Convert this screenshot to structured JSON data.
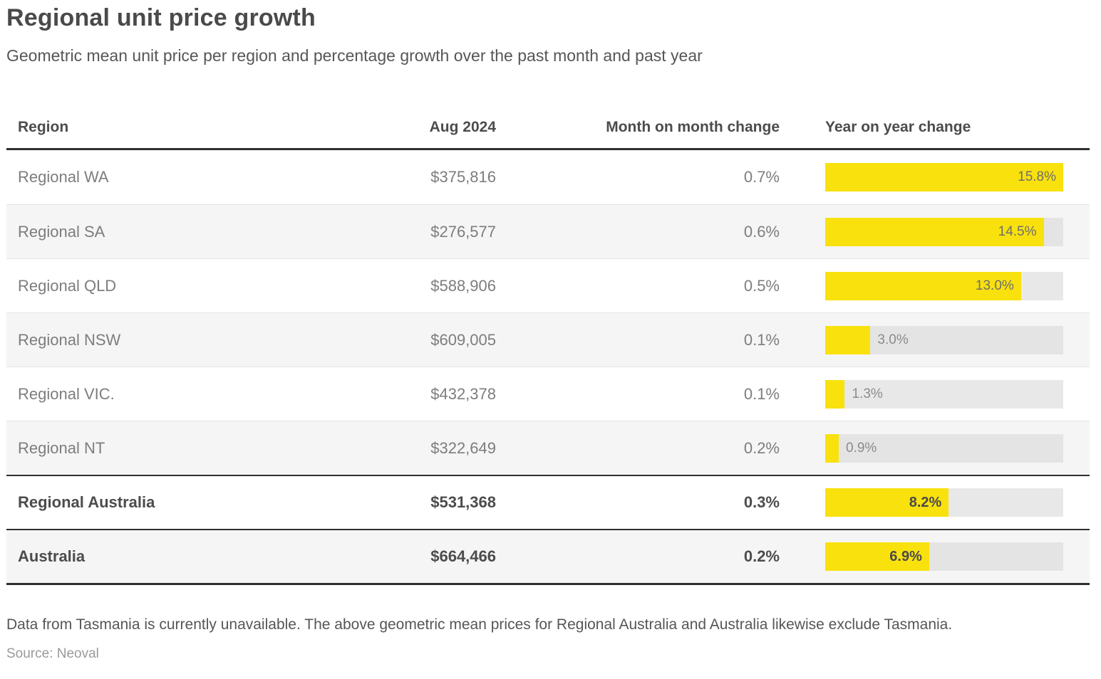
{
  "page": {
    "title": "Regional unit price growth",
    "subtitle": "Geometric mean unit price per region and percentage growth over the past month and past year",
    "footnote": "Data from Tasmania is currently unavailable. The above geometric mean prices for Regional Australia and Australia likewise exclude Tasmania.",
    "source": "Source: Neoval"
  },
  "table": {
    "columns": [
      "Region",
      "Aug 2024",
      "Month on month change",
      "Year on year change"
    ],
    "bar_max": 15.8,
    "rows": [
      {
        "region": "Regional WA",
        "price": "$375,816",
        "mom": "0.7%",
        "yoy": "15.8%",
        "yoy_value": 15.8,
        "bold": false,
        "top_border": false
      },
      {
        "region": "Regional SA",
        "price": "$276,577",
        "mom": "0.6%",
        "yoy": "14.5%",
        "yoy_value": 14.5,
        "bold": false,
        "top_border": false
      },
      {
        "region": "Regional QLD",
        "price": "$588,906",
        "mom": "0.5%",
        "yoy": "13.0%",
        "yoy_value": 13.0,
        "bold": false,
        "top_border": false
      },
      {
        "region": "Regional NSW",
        "price": "$609,005",
        "mom": "0.1%",
        "yoy": "3.0%",
        "yoy_value": 3.0,
        "bold": false,
        "top_border": false
      },
      {
        "region": "Regional VIC.",
        "price": "$432,378",
        "mom": "0.1%",
        "yoy": "1.3%",
        "yoy_value": 1.3,
        "bold": false,
        "top_border": false
      },
      {
        "region": "Regional NT",
        "price": "$322,649",
        "mom": "0.2%",
        "yoy": "0.9%",
        "yoy_value": 0.9,
        "bold": false,
        "top_border": false
      },
      {
        "region": "Regional Australia",
        "price": "$531,368",
        "mom": "0.3%",
        "yoy": "8.2%",
        "yoy_value": 8.2,
        "bold": true,
        "top_border": true
      },
      {
        "region": "Australia",
        "price": "$664,466",
        "mom": "0.2%",
        "yoy": "6.9%",
        "yoy_value": 6.9,
        "bold": true,
        "top_border": true
      }
    ]
  },
  "colors": {
    "bar_fill": "#f9e10d",
    "bar_track": "#e8e8e8",
    "row_alt_bg": "#f5f5f5",
    "heading_text": "#4a4a4a",
    "body_text": "#7d7d7d",
    "border_dark": "#2f2f2f"
  },
  "chart_data": {
    "type": "table",
    "title": "Regional unit price growth",
    "subtitle": "Geometric mean unit price per region and percentage growth over the past month and past year",
    "columns": [
      "Region",
      "Aug 2024",
      "Month on month change",
      "Year on year change"
    ],
    "rows": [
      [
        "Regional WA",
        375816,
        0.7,
        15.8
      ],
      [
        "Regional SA",
        276577,
        0.6,
        14.5
      ],
      [
        "Regional QLD",
        588906,
        0.5,
        13.0
      ],
      [
        "Regional NSW",
        609005,
        0.1,
        3.0
      ],
      [
        "Regional VIC.",
        432378,
        0.1,
        1.3
      ],
      [
        "Regional NT",
        322649,
        0.2,
        0.9
      ],
      [
        "Regional Australia",
        531368,
        0.3,
        8.2
      ],
      [
        "Australia",
        664466,
        0.2,
        6.9
      ]
    ],
    "embedded_bar": {
      "type": "bar",
      "orientation": "horizontal",
      "column": "Year on year change",
      "unit": "%",
      "values": [
        15.8,
        14.5,
        13.0,
        3.0,
        1.3,
        0.9,
        8.2,
        6.9
      ],
      "xlim": [
        0,
        15.8
      ],
      "fill_color": "#f9e10d",
      "track_color": "#e8e8e8"
    },
    "footnote": "Data from Tasmania is currently unavailable. The above geometric mean prices for Regional Australia and Australia likewise exclude Tasmania.",
    "source": "Neoval"
  }
}
